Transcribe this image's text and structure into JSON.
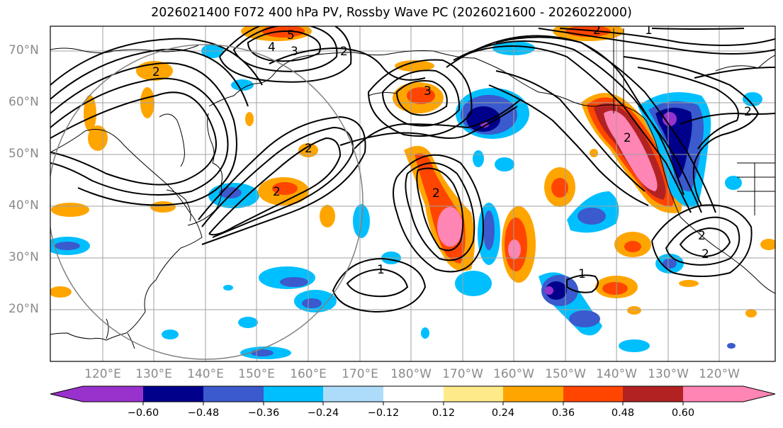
{
  "title": "2026021400 F072 400 hPa PV, Rossby Wave PC (2026021600 - 2026022000)",
  "lat_labels": [
    "70°N",
    "60°N",
    "50°N",
    "40°N",
    "30°N",
    "20°N"
  ],
  "lon_labels": [
    "120°E",
    "130°E",
    "140°E",
    "150°E",
    "160°E",
    "170°E",
    "180°W",
    "170°W",
    "160°W",
    "150°W",
    "140°W",
    "130°W",
    "120°W"
  ],
  "colorbar": {
    "labels": [
      "−0.60",
      "−0.48",
      "−0.36",
      "−0.24",
      "−0.12",
      "0.12",
      "0.24",
      "0.36",
      "0.48",
      "0.60"
    ],
    "colors": [
      "#9932CC",
      "#00008B",
      "#3A5ACD",
      "#00BFFF",
      "#ADDCFA",
      "#FFFFFF",
      "#FFEA8A",
      "#FFA500",
      "#FF4500",
      "#B22222",
      "#FF85B4"
    ]
  },
  "contour_labels": [
    "5",
    "4",
    "3",
    "2",
    "2",
    "2",
    "3",
    "2",
    "2",
    "2",
    "2",
    "2",
    "1",
    "1",
    "1",
    "2",
    "2"
  ]
}
